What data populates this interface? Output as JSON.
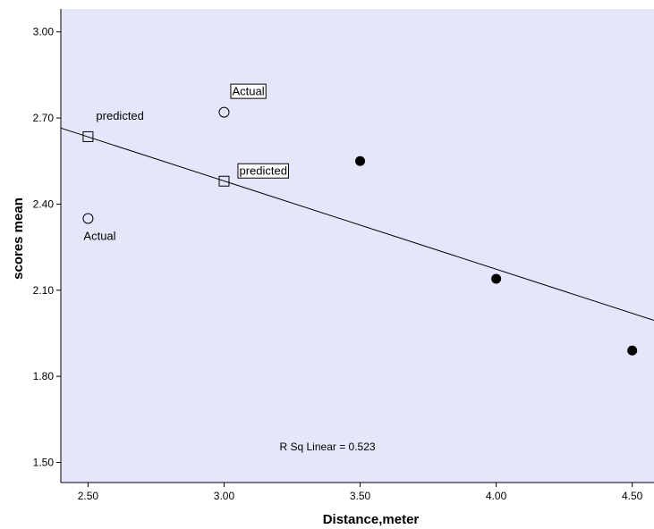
{
  "chart_data": {
    "type": "scatter",
    "xlabel": "Distance,meter",
    "ylabel": "scores mean",
    "xlim": [
      2.4,
      4.58
    ],
    "ylim": [
      1.43,
      3.08
    ],
    "x_ticks": [
      "2.50",
      "3.00",
      "3.50",
      "4.00",
      "4.50"
    ],
    "y_ticks": [
      "1.50",
      "1.80",
      "2.10",
      "2.40",
      "2.70",
      "3.00"
    ],
    "background_color": "#e6e6fa",
    "points": [
      {
        "x": 3.5,
        "y": 2.55,
        "marker": "filled-circle"
      },
      {
        "x": 4.0,
        "y": 2.14,
        "marker": "filled-circle"
      },
      {
        "x": 4.5,
        "y": 1.89,
        "marker": "filled-circle"
      },
      {
        "x": 2.5,
        "y": 2.35,
        "marker": "open-circle"
      },
      {
        "x": 3.0,
        "y": 2.72,
        "marker": "open-circle"
      },
      {
        "x": 2.5,
        "y": 2.635,
        "marker": "open-square"
      },
      {
        "x": 3.0,
        "y": 2.48,
        "marker": "open-square"
      }
    ],
    "fit_line": {
      "x": [
        2.4,
        4.58
      ],
      "y": [
        2.665,
        1.995
      ]
    },
    "annotations": [
      {
        "text": "predicted",
        "x": 2.5,
        "y": 2.635,
        "position": "above-right",
        "boxed": false
      },
      {
        "text": "Actual",
        "x": 3.0,
        "y": 2.72,
        "position": "above-right",
        "boxed": true
      },
      {
        "text": "predicted",
        "x": 3.0,
        "y": 2.48,
        "position": "right",
        "boxed": true
      },
      {
        "text": "Actual",
        "x": 2.5,
        "y": 2.35,
        "position": "below",
        "boxed": false
      }
    ],
    "r_squared_label": "R Sq Linear = 0.523",
    "r_squared_pos": {
      "x": 3.38,
      "y": 1.555
    },
    "grid": false,
    "legend": "none"
  }
}
